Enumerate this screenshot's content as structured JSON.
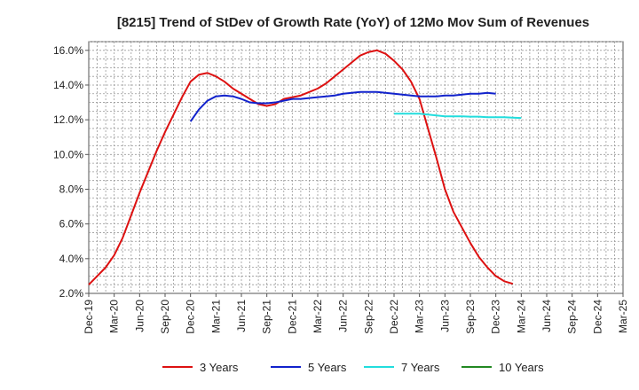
{
  "chart_data": {
    "type": "line",
    "title": "[8215]  Trend of StDev of Growth Rate (YoY) of 12Mo Mov Sum of Revenues",
    "xlabel": "",
    "ylabel": "",
    "ylim": [
      2.0,
      16.5
    ],
    "yticks": [
      2.0,
      4.0,
      6.0,
      8.0,
      10.0,
      12.0,
      14.0,
      16.0
    ],
    "ytick_labels": [
      "2.0%",
      "4.0%",
      "6.0%",
      "8.0%",
      "10.0%",
      "12.0%",
      "14.0%",
      "16.0%"
    ],
    "xlim": [
      0,
      63
    ],
    "xticks": [
      0,
      3,
      6,
      9,
      12,
      15,
      18,
      21,
      24,
      27,
      30,
      33,
      36,
      39,
      42,
      45,
      48,
      51,
      54,
      57,
      60,
      63
    ],
    "xtick_labels": [
      "Dec-19",
      "Mar-20",
      "Jun-20",
      "Sep-20",
      "Dec-20",
      "Mar-21",
      "Jun-21",
      "Sep-21",
      "Dec-21",
      "Mar-22",
      "Jun-22",
      "Sep-22",
      "Dec-22",
      "Mar-23",
      "Jun-23",
      "Sep-23",
      "Dec-23",
      "Mar-24",
      "Jun-24",
      "Sep-24",
      "Dec-24",
      "Mar-25"
    ],
    "grid": true,
    "legend_position": "bottom",
    "series": [
      {
        "name": "3 Years",
        "color": "#dd1111",
        "points": [
          [
            0,
            2.5
          ],
          [
            1,
            3.0
          ],
          [
            2,
            3.5
          ],
          [
            3,
            4.2
          ],
          [
            4,
            5.2
          ],
          [
            5,
            6.5
          ],
          [
            6,
            7.8
          ],
          [
            7,
            9.0
          ],
          [
            8,
            10.2
          ],
          [
            9,
            11.3
          ],
          [
            10,
            12.3
          ],
          [
            11,
            13.3
          ],
          [
            12,
            14.2
          ],
          [
            13,
            14.6
          ],
          [
            14,
            14.7
          ],
          [
            15,
            14.5
          ],
          [
            16,
            14.2
          ],
          [
            17,
            13.8
          ],
          [
            18,
            13.5
          ],
          [
            19,
            13.2
          ],
          [
            20,
            12.9
          ],
          [
            21,
            12.8
          ],
          [
            22,
            12.9
          ],
          [
            23,
            13.2
          ],
          [
            24,
            13.3
          ],
          [
            25,
            13.4
          ],
          [
            26,
            13.6
          ],
          [
            27,
            13.8
          ],
          [
            28,
            14.1
          ],
          [
            29,
            14.5
          ],
          [
            30,
            14.9
          ],
          [
            31,
            15.3
          ],
          [
            32,
            15.7
          ],
          [
            33,
            15.9
          ],
          [
            34,
            16.0
          ],
          [
            35,
            15.8
          ],
          [
            36,
            15.4
          ],
          [
            37,
            14.9
          ],
          [
            38,
            14.2
          ],
          [
            39,
            13.2
          ],
          [
            40,
            11.5
          ],
          [
            41,
            9.8
          ],
          [
            42,
            8.0
          ],
          [
            43,
            6.7
          ],
          [
            44,
            5.8
          ],
          [
            45,
            4.9
          ],
          [
            46,
            4.1
          ],
          [
            47,
            3.5
          ],
          [
            48,
            3.0
          ],
          [
            49,
            2.7
          ],
          [
            50,
            2.55
          ]
        ]
      },
      {
        "name": "5 Years",
        "color": "#1122cc",
        "points": [
          [
            12,
            11.9
          ],
          [
            13,
            12.6
          ],
          [
            14,
            13.1
          ],
          [
            15,
            13.35
          ],
          [
            16,
            13.4
          ],
          [
            17,
            13.35
          ],
          [
            18,
            13.2
          ],
          [
            19,
            13.0
          ],
          [
            20,
            12.95
          ],
          [
            21,
            12.95
          ],
          [
            22,
            13.0
          ],
          [
            23,
            13.1
          ],
          [
            24,
            13.2
          ],
          [
            25,
            13.2
          ],
          [
            26,
            13.25
          ],
          [
            27,
            13.3
          ],
          [
            28,
            13.35
          ],
          [
            29,
            13.4
          ],
          [
            30,
            13.5
          ],
          [
            31,
            13.55
          ],
          [
            32,
            13.6
          ],
          [
            33,
            13.6
          ],
          [
            34,
            13.6
          ],
          [
            35,
            13.55
          ],
          [
            36,
            13.5
          ],
          [
            37,
            13.45
          ],
          [
            38,
            13.4
          ],
          [
            39,
            13.35
          ],
          [
            40,
            13.35
          ],
          [
            41,
            13.35
          ],
          [
            42,
            13.4
          ],
          [
            43,
            13.4
          ],
          [
            44,
            13.45
          ],
          [
            45,
            13.5
          ],
          [
            46,
            13.5
          ],
          [
            47,
            13.55
          ],
          [
            48,
            13.5
          ]
        ]
      },
      {
        "name": "7 Years",
        "color": "#22dddd",
        "points": [
          [
            36,
            12.35
          ],
          [
            37,
            12.35
          ],
          [
            38,
            12.35
          ],
          [
            39,
            12.35
          ],
          [
            40,
            12.3
          ],
          [
            41,
            12.25
          ],
          [
            42,
            12.2
          ],
          [
            43,
            12.2
          ],
          [
            44,
            12.2
          ],
          [
            45,
            12.18
          ],
          [
            46,
            12.18
          ],
          [
            47,
            12.15
          ],
          [
            48,
            12.15
          ],
          [
            49,
            12.15
          ],
          [
            50,
            12.12
          ],
          [
            51,
            12.1
          ]
        ]
      },
      {
        "name": "10 Years",
        "color": "#228822",
        "points": []
      }
    ]
  }
}
